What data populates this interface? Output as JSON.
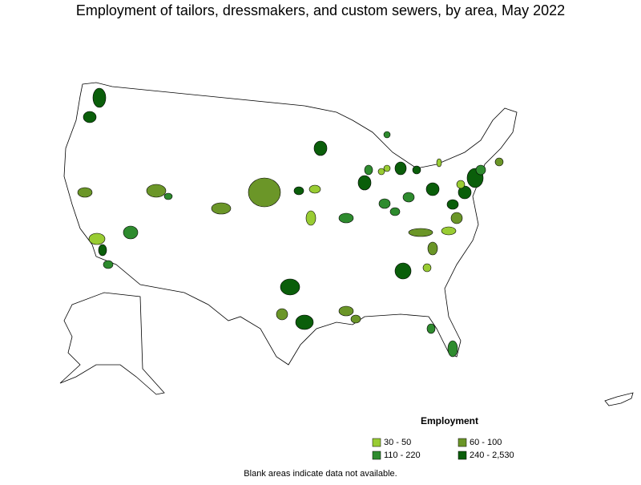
{
  "title": "Employment of tailors, dressmakers, and custom sewers, by area, May 2022",
  "legend": {
    "title": "Employment",
    "entries": [
      {
        "label": "30 - 50",
        "color": "#99cc33"
      },
      {
        "label": "60 - 100",
        "color": "#6b9628"
      },
      {
        "label": "110 - 220",
        "color": "#2e8b2e"
      },
      {
        "label": "240 - 2,530",
        "color": "#0a5e0a"
      }
    ]
  },
  "footnote": "Blank areas indicate data not available."
}
